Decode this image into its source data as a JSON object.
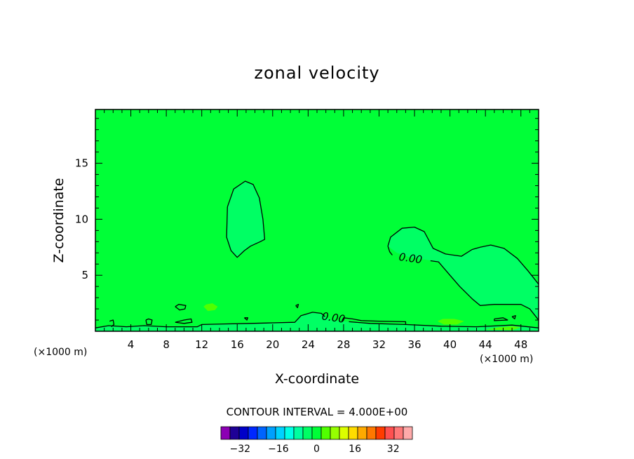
{
  "chart_data": {
    "type": "contour",
    "title": "zonal velocity",
    "xlabel": "X-coordinate",
    "ylabel": "Z-coordinate",
    "x_units": "(×1000 m)",
    "x_units_secondary": "(×1000 m)",
    "xlim": [
      0,
      50
    ],
    "ylim": [
      0,
      19.8
    ],
    "x_ticks": [
      4,
      8,
      12,
      16,
      20,
      24,
      28,
      32,
      36,
      40,
      44,
      48
    ],
    "x_tick_labels": [
      "4",
      "8",
      "12",
      "16",
      "20",
      "24",
      "28",
      "32",
      "36",
      "40",
      "44",
      "48"
    ],
    "x_minor_step": 1,
    "y_ticks": [
      5,
      10,
      15
    ],
    "y_tick_labels": [
      "5",
      "10",
      "15"
    ],
    "y_minor_step": 1,
    "contour_interval_text": "CONTOUR INTERVAL = 4.000E+00",
    "contour_labels": [
      {
        "text": "0.00",
        "x": 35.5,
        "y": 6.2
      },
      {
        "text": "0.00",
        "x": 26.8,
        "y": 0.9
      }
    ],
    "background_value": 2,
    "regions": [
      {
        "name": "negative-cell-center",
        "value": -2,
        "points": [
          [
            14.9,
            11.1
          ],
          [
            15.6,
            12.7
          ],
          [
            16.9,
            13.4
          ],
          [
            17.8,
            13.1
          ],
          [
            18.5,
            11.9
          ],
          [
            18.9,
            10.0
          ],
          [
            19.1,
            8.2
          ],
          [
            18.6,
            8.0
          ],
          [
            17.5,
            7.6
          ],
          [
            16.8,
            7.2
          ],
          [
            16.0,
            6.6
          ],
          [
            15.3,
            7.2
          ],
          [
            14.8,
            8.4
          ]
        ]
      },
      {
        "name": "negative-cell-right",
        "value": -2,
        "points": [
          [
            33.0,
            7.6
          ],
          [
            33.3,
            8.4
          ],
          [
            34.6,
            9.2
          ],
          [
            36.0,
            9.3
          ],
          [
            37.1,
            8.9
          ],
          [
            38.1,
            7.4
          ],
          [
            39.5,
            6.9
          ],
          [
            41.3,
            6.7
          ],
          [
            42.5,
            7.3
          ],
          [
            43.4,
            7.5
          ],
          [
            44.6,
            7.7
          ],
          [
            46.1,
            7.4
          ],
          [
            47.6,
            6.5
          ],
          [
            48.8,
            5.4
          ],
          [
            50.0,
            4.2
          ],
          [
            50.0,
            1.0
          ],
          [
            49.0,
            2.0
          ],
          [
            48.0,
            2.4
          ],
          [
            46.8,
            2.4
          ],
          [
            45.0,
            2.4
          ],
          [
            43.4,
            2.3
          ],
          [
            42.5,
            2.9
          ],
          [
            41.1,
            4.0
          ],
          [
            40.0,
            5.0
          ],
          [
            38.7,
            6.2
          ],
          [
            37.2,
            6.4
          ],
          [
            35.5,
            6.6
          ],
          [
            34.0,
            7.0
          ]
        ]
      },
      {
        "name": "negative-strip-bottom",
        "value": -2,
        "points": [
          [
            0.0,
            0.3
          ],
          [
            1.5,
            0.5
          ],
          [
            3.5,
            0.4
          ],
          [
            5.5,
            0.5
          ],
          [
            8.0,
            0.4
          ],
          [
            9.5,
            0.4
          ],
          [
            11.5,
            0.4
          ],
          [
            12.0,
            0.6
          ],
          [
            14.5,
            0.65
          ],
          [
            17.5,
            0.7
          ],
          [
            20.0,
            0.75
          ],
          [
            22.5,
            0.8
          ],
          [
            23.2,
            1.4
          ],
          [
            24.5,
            1.7
          ],
          [
            25.5,
            1.6
          ],
          [
            26.5,
            1.0
          ],
          [
            28.5,
            0.85
          ],
          [
            31.0,
            0.7
          ],
          [
            35.0,
            0.6
          ],
          [
            39.0,
            0.45
          ],
          [
            43.0,
            0.4
          ],
          [
            47.0,
            0.55
          ],
          [
            50.0,
            0.3
          ],
          [
            50.0,
            0.0
          ],
          [
            0.0,
            0.0
          ]
        ]
      },
      {
        "name": "positive-blob-1",
        "value": 6,
        "points": [
          [
            12.2,
            2.2
          ],
          [
            12.5,
            2.4
          ],
          [
            13.2,
            2.5
          ],
          [
            13.8,
            2.2
          ],
          [
            13.5,
            1.9
          ],
          [
            12.7,
            1.8
          ]
        ]
      },
      {
        "name": "positive-blob-2",
        "value": 6,
        "points": [
          [
            38.6,
            0.9
          ],
          [
            39.2,
            1.1
          ],
          [
            40.5,
            1.1
          ],
          [
            41.6,
            0.9
          ],
          [
            40.8,
            0.6
          ],
          [
            39.3,
            0.6
          ]
        ]
      },
      {
        "name": "positive-blob-3",
        "value": 6,
        "points": [
          [
            44.0,
            0.15
          ],
          [
            45.5,
            0.35
          ],
          [
            47.0,
            0.45
          ],
          [
            48.0,
            0.35
          ],
          [
            47.0,
            0.1
          ]
        ]
      }
    ],
    "contour_lines": [
      [
        [
          14.9,
          11.1
        ],
        [
          15.6,
          12.7
        ],
        [
          16.9,
          13.4
        ],
        [
          17.8,
          13.1
        ],
        [
          18.5,
          11.9
        ],
        [
          18.9,
          10.0
        ],
        [
          19.1,
          8.2
        ],
        [
          18.6,
          8.0
        ],
        [
          17.5,
          7.6
        ],
        [
          16.8,
          7.2
        ],
        [
          16.0,
          6.6
        ],
        [
          15.3,
          7.2
        ],
        [
          14.8,
          8.4
        ],
        [
          14.9,
          11.1
        ]
      ],
      [
        [
          33.0,
          7.6
        ],
        [
          33.3,
          8.4
        ],
        [
          34.6,
          9.2
        ],
        [
          36.0,
          9.3
        ],
        [
          37.1,
          8.9
        ],
        [
          38.1,
          7.4
        ],
        [
          39.5,
          6.9
        ],
        [
          41.3,
          6.7
        ],
        [
          42.5,
          7.3
        ],
        [
          43.4,
          7.5
        ],
        [
          44.6,
          7.7
        ],
        [
          46.1,
          7.4
        ],
        [
          47.6,
          6.5
        ],
        [
          48.8,
          5.4
        ],
        [
          50.0,
          4.2
        ]
      ],
      [
        [
          50.0,
          1.0
        ],
        [
          49.0,
          2.0
        ],
        [
          48.0,
          2.4
        ],
        [
          46.8,
          2.4
        ],
        [
          45.0,
          2.4
        ],
        [
          43.4,
          2.3
        ],
        [
          42.5,
          2.9
        ],
        [
          41.1,
          4.0
        ],
        [
          40.0,
          5.0
        ],
        [
          38.7,
          6.2
        ],
        [
          37.8,
          6.3
        ]
      ],
      [
        [
          33.0,
          7.6
        ],
        [
          33.2,
          7.1
        ],
        [
          33.5,
          6.8
        ]
      ],
      [
        [
          0.0,
          0.3
        ],
        [
          1.5,
          0.5
        ],
        [
          3.5,
          0.4
        ],
        [
          5.5,
          0.5
        ],
        [
          8.0,
          0.4
        ],
        [
          9.5,
          0.4
        ],
        [
          11.5,
          0.4
        ],
        [
          12.0,
          0.6
        ],
        [
          14.5,
          0.65
        ],
        [
          17.5,
          0.7
        ],
        [
          20.0,
          0.75
        ],
        [
          22.5,
          0.8
        ],
        [
          23.2,
          1.4
        ],
        [
          24.5,
          1.7
        ],
        [
          25.5,
          1.6
        ],
        [
          25.9,
          1.3
        ]
      ],
      [
        [
          28.6,
          0.85
        ],
        [
          31.0,
          0.7
        ],
        [
          35.0,
          0.6
        ],
        [
          39.0,
          0.45
        ],
        [
          43.0,
          0.4
        ],
        [
          47.0,
          0.55
        ],
        [
          50.0,
          0.3
        ]
      ],
      [
        [
          9.0,
          2.2
        ],
        [
          9.4,
          2.4
        ],
        [
          10.2,
          2.3
        ],
        [
          10.1,
          2.0
        ],
        [
          9.5,
          1.9
        ],
        [
          9.0,
          2.2
        ]
      ],
      [
        [
          5.7,
          1.0
        ],
        [
          6.0,
          1.1
        ],
        [
          6.4,
          1.0
        ],
        [
          6.3,
          0.6
        ],
        [
          5.8,
          0.6
        ],
        [
          5.7,
          1.0
        ]
      ],
      [
        [
          1.6,
          0.9
        ],
        [
          2.0,
          1.0
        ],
        [
          2.1,
          0.6
        ],
        [
          1.8,
          0.4
        ]
      ],
      [
        [
          9.0,
          0.8
        ],
        [
          10.0,
          1.0
        ],
        [
          10.8,
          1.1
        ],
        [
          10.9,
          0.8
        ],
        [
          10.0,
          0.7
        ],
        [
          9.0,
          0.8
        ]
      ],
      [
        [
          16.8,
          1.2
        ],
        [
          17.2,
          1.2
        ],
        [
          17.1,
          1.0
        ],
        [
          16.8,
          1.2
        ]
      ],
      [
        [
          22.6,
          2.3
        ],
        [
          22.9,
          2.4
        ],
        [
          22.8,
          2.1
        ],
        [
          22.6,
          2.3
        ]
      ],
      [
        [
          27.8,
          0.9
        ],
        [
          28.0,
          1.2
        ],
        [
          29.0,
          1.1
        ],
        [
          30.0,
          0.95
        ],
        [
          32.0,
          0.9
        ],
        [
          35.0,
          0.85
        ],
        [
          35.0,
          0.6
        ]
      ],
      [
        [
          45.0,
          1.1
        ],
        [
          46.0,
          1.2
        ],
        [
          46.5,
          1.0
        ],
        [
          45.0,
          0.95
        ],
        [
          45.0,
          1.1
        ]
      ],
      [
        [
          47.0,
          1.3
        ],
        [
          47.4,
          1.4
        ],
        [
          47.3,
          1.1
        ],
        [
          47.0,
          1.3
        ]
      ]
    ],
    "colorbar": {
      "boundaries": [
        -40,
        -36,
        -32,
        -28,
        -24,
        -20,
        -16,
        -12,
        -8,
        -4,
        0,
        4,
        8,
        12,
        16,
        20,
        24,
        28,
        32,
        36,
        40
      ],
      "colors": [
        "#8c00b4",
        "#1e0096",
        "#0000c8",
        "#0028ff",
        "#0064ff",
        "#00a0ff",
        "#00d2ff",
        "#00ffe6",
        "#00ffa0",
        "#00ff64",
        "#00ff37",
        "#50ff00",
        "#96ff00",
        "#dcff00",
        "#ffdc00",
        "#ffaa00",
        "#ff7800",
        "#ff3c00",
        "#ff5050",
        "#ff7878",
        "#ffaaaa"
      ],
      "tick_values": [
        -32,
        -16,
        0,
        16,
        32
      ],
      "tick_labels": [
        "−32",
        "−16",
        "0",
        "16",
        "32"
      ]
    }
  }
}
